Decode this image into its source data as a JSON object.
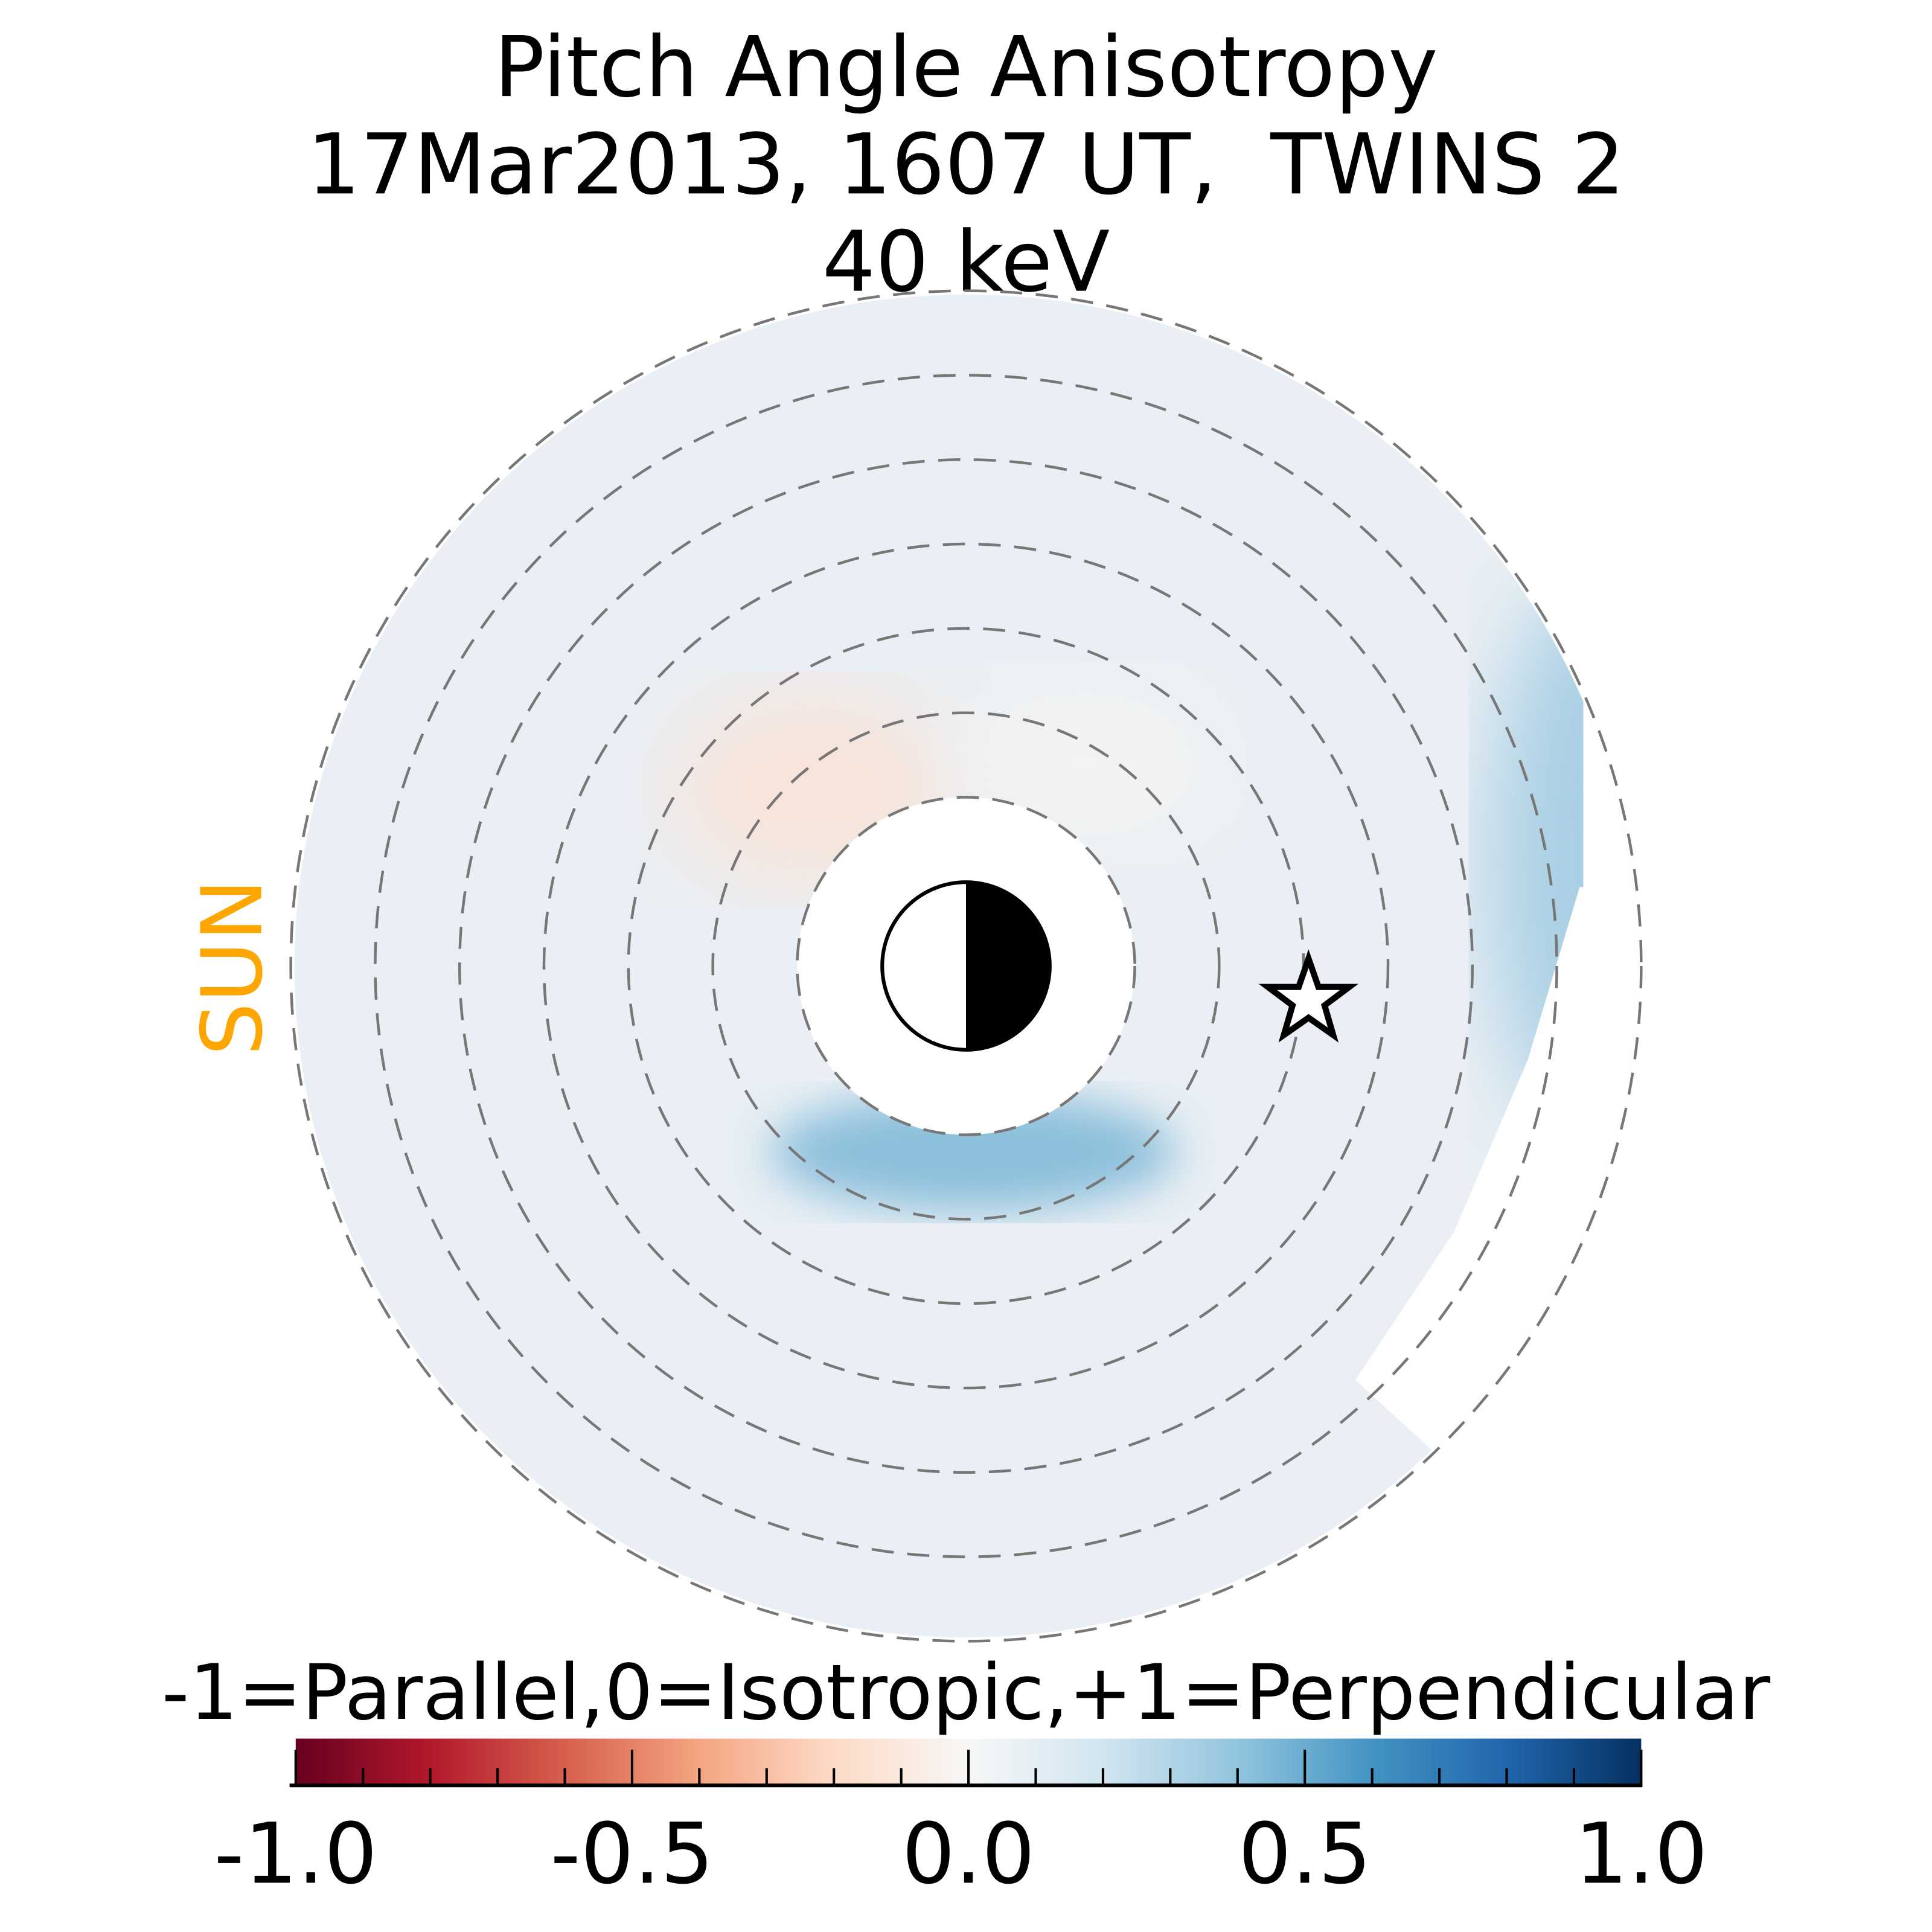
{
  "chart_data": {
    "type": "heatmap",
    "title_lines": [
      "Pitch Angle Anisotropy",
      "17Mar2013, 1607 UT,  TWINS 2",
      "40 keV"
    ],
    "sun_label": "SUN",
    "colorbar": {
      "label": "-1=Parallel,0=Isotropic,+1=Perpendicular",
      "range": [
        -1.0,
        1.0
      ],
      "ticks": [
        -1.0,
        -0.5,
        0.0,
        0.5,
        1.0
      ],
      "tick_labels": [
        "-1.0",
        "-0.5",
        "0.0",
        "0.5",
        "1.0"
      ],
      "minor_step": 0.1,
      "colormap": [
        "#67001f",
        "#b2182b",
        "#d6604d",
        "#f4a582",
        "#fddbc7",
        "#f7f7f7",
        "#d1e5f0",
        "#92c5de",
        "#4393c3",
        "#2166ac",
        "#053061"
      ]
    },
    "rings_count": 7,
    "features": {
      "background_value": 0.05,
      "parallel_region": {
        "location": "pre-noon / dawn-sun side, inner rings",
        "value": -0.1
      },
      "perpendicular_band": {
        "location": "south of Earth, inner ring",
        "value": 0.4
      },
      "perpendicular_rim": {
        "location": "outer edge, night side",
        "value": 0.3
      }
    },
    "markers": {
      "earth": "day-night Earth symbol",
      "spacecraft": "star"
    }
  }
}
